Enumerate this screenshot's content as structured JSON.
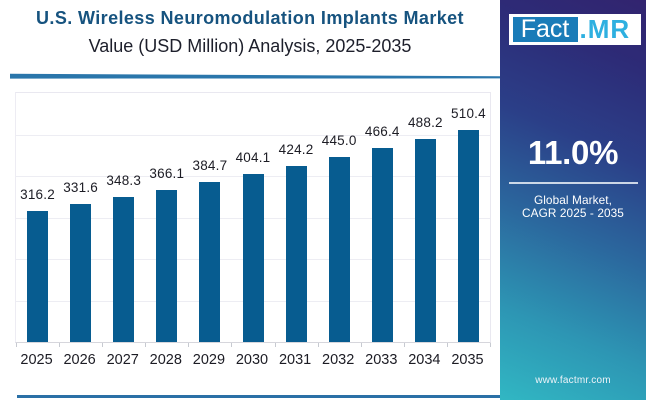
{
  "header": {
    "title": "U.S. Wireless Neuromodulation Implants Market",
    "subtitle": "Value (USD Million) Analysis, 2025-2035"
  },
  "chart_data": {
    "type": "bar",
    "title": "U.S. Wireless Neuromodulation Implants Market",
    "subtitle": "Value (USD Million) Analysis, 2025-2035",
    "categories": [
      "2025",
      "2026",
      "2027",
      "2028",
      "2029",
      "2030",
      "2031",
      "2032",
      "2033",
      "2034",
      "2035"
    ],
    "values": [
      316.2,
      331.6,
      348.3,
      366.1,
      384.7,
      404.1,
      424.2,
      445.0,
      466.4,
      488.2,
      510.4
    ],
    "value_labels": [
      "316.2",
      "331.6",
      "348.3",
      "366.1",
      "384.7",
      "404.1",
      "424.2",
      "445.0",
      "466.4",
      "488.2",
      "510.4"
    ],
    "xlabel": "",
    "ylabel": "",
    "ylim": [
      0,
      600
    ],
    "gridline_interval": 100,
    "grid": "faint horizontal gridlines, no y-axis labels",
    "legend": "none",
    "bar_color": "#075c90",
    "label_color": "#1c1c24"
  },
  "panel": {
    "logo_primary": "Fact",
    "logo_secondary": ".MR",
    "cagr_value": "11.0%",
    "caption_line1": "Global Market,",
    "caption_line2": "CAGR 2025 - 2035",
    "website": "www.factmr.com",
    "gradient_top_color": "#32246f",
    "gradient_bottom_color": "#31b6c2"
  },
  "accents": {
    "title_color": "#16537f",
    "header_rule_color": "#2a76ab",
    "footer_rule_color": "#2a70a6"
  }
}
